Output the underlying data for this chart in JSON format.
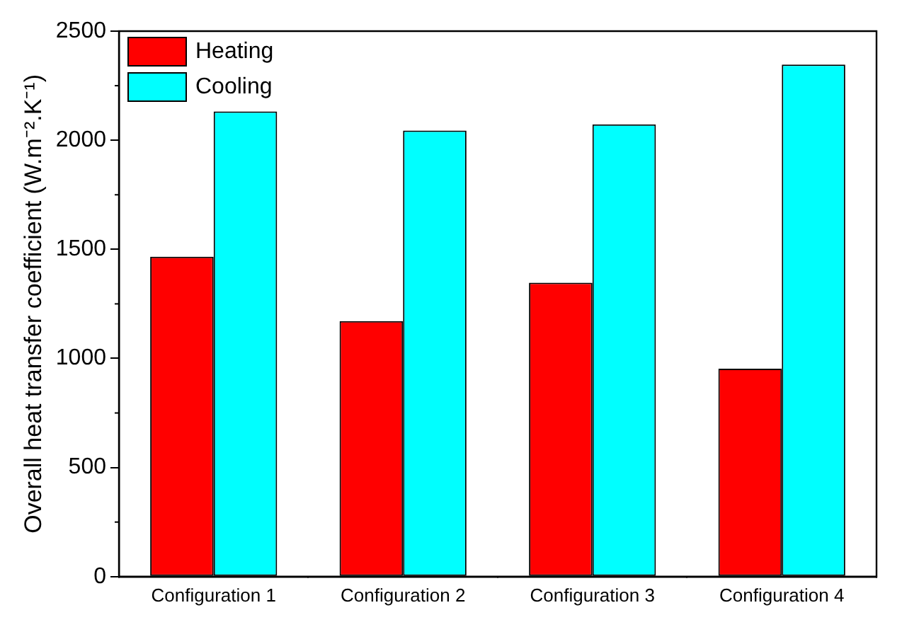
{
  "chart_data": {
    "type": "bar",
    "ylabel": "Overall heat transfer coefficient (W.m⁻².K⁻¹)",
    "categories": [
      "Configuration 1",
      "Configuration 2",
      "Configuration 3",
      "Configuration 4"
    ],
    "series": [
      {
        "name": "Heating",
        "color": "#ff0000",
        "values": [
          1466,
          1171,
          1347,
          953
        ]
      },
      {
        "name": "Cooling",
        "color": "#00ffff",
        "values": [
          2132,
          2044,
          2073,
          2347
        ]
      }
    ],
    "ylim": [
      0,
      2500
    ],
    "yticks": [
      0,
      500,
      1000,
      1500,
      2000,
      2500
    ],
    "grid": false,
    "legend": "top left"
  }
}
